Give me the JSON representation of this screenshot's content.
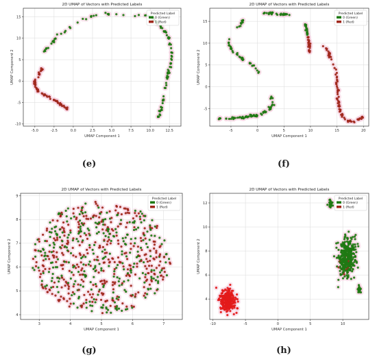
{
  "legend_title": "Predicted Label",
  "legend_green": "0 (Green)",
  "legend_red": "1 (Red)",
  "colors": {
    "green": "#1f7a14",
    "red": "#a0281c",
    "red_bright": "#e31a1a",
    "grid": "#d9d9d9",
    "halo": "#f6cfe0"
  },
  "chart_data": [
    {
      "id": "e",
      "type": "scatter",
      "caption": "(e)",
      "title": "2D UMAP of Vectors with Predicted Labels",
      "xlabel": "UMAP Component 1",
      "ylabel": "UMAP Component 2",
      "xlim": [
        -6.5,
        14
      ],
      "ylim": [
        -10.5,
        17
      ],
      "xticks": [
        "-5.0",
        "-2.5",
        "0.0",
        "2.5",
        "5.0",
        "7.5",
        "10.0",
        "12.5"
      ],
      "xtick_values": [
        -5,
        -2.5,
        0,
        2.5,
        5,
        7.5,
        10,
        12.5
      ],
      "yticks": [
        "-10",
        "-5",
        "0",
        "5",
        "10",
        "15"
      ],
      "ytick_values": [
        -10,
        -5,
        0,
        5,
        10,
        15
      ],
      "grid": true,
      "legend": "top-right",
      "segments": [
        {
          "label": 0,
          "n": 120,
          "pts": [
            [
              -3.8,
              6.8
            ],
            [
              -3.0,
              8.5
            ],
            [
              -2.0,
              10.5
            ],
            [
              -0.5,
              12.5
            ],
            [
              1.0,
              14.2
            ],
            [
              2.5,
              15.2
            ],
            [
              4.0,
              15.8
            ],
            [
              5.5,
              15.6
            ],
            [
              7.0,
              15.2
            ],
            [
              8.0,
              15.3
            ],
            [
              9.0,
              15.5
            ],
            [
              10.0,
              15.0
            ],
            [
              11.0,
              13.5
            ],
            [
              12.0,
              11.5
            ],
            [
              12.5,
              9.5
            ],
            [
              12.8,
              7.5
            ],
            [
              12.8,
              5.5
            ],
            [
              12.6,
              3.5
            ],
            [
              12.3,
              1.5
            ],
            [
              12.0,
              -1.0
            ],
            [
              11.8,
              -3.5
            ],
            [
              11.5,
              -6.0
            ],
            [
              11.0,
              -9.0
            ]
          ]
        },
        {
          "label": 1,
          "n": 45,
          "pts": [
            [
              -4.0,
              3.0
            ],
            [
              -4.5,
              1.5
            ],
            [
              -5.0,
              0.0
            ],
            [
              -5.0,
              -1.0
            ],
            [
              -4.6,
              -2.2
            ],
            [
              -3.8,
              -3.2
            ],
            [
              -3.0,
              -3.8
            ]
          ]
        },
        {
          "label": 1,
          "n": 25,
          "pts": [
            [
              -2.5,
              -4.2
            ],
            [
              -1.5,
              -5.5
            ],
            [
              -0.8,
              -6.5
            ]
          ]
        }
      ]
    },
    {
      "id": "f",
      "type": "scatter",
      "caption": "(f)",
      "title": "2D UMAP of Vectors with Predicted Labels",
      "xlabel": "UMAP Component 1",
      "ylabel": "UMAP Component 2",
      "xlim": [
        -9,
        21
      ],
      "ylim": [
        -9,
        18
      ],
      "xticks": [
        "-5",
        "0",
        "5",
        "10",
        "15",
        "20"
      ],
      "xtick_values": [
        -5,
        0,
        5,
        10,
        15,
        20
      ],
      "yticks": [
        "-5",
        "0",
        "5",
        "10",
        "15"
      ],
      "ytick_values": [
        -5,
        0,
        5,
        10,
        15
      ],
      "grid": true,
      "legend": "top-right",
      "segments": [
        {
          "label": 0,
          "n": 30,
          "pts": [
            [
              0.5,
              16.8
            ],
            [
              3.0,
              16.9
            ],
            [
              6.0,
              16.4
            ]
          ]
        },
        {
          "label": 0,
          "n": 45,
          "pts": [
            [
              -2.5,
              15.5
            ],
            [
              -4.0,
              13.0
            ],
            [
              -5.5,
              10.5
            ],
            [
              -5.0,
              8.5
            ],
            [
              -3.5,
              7.0
            ],
            [
              -1.0,
              5.0
            ],
            [
              0.3,
              3.2
            ]
          ]
        },
        {
          "label": 0,
          "n": 70,
          "pts": [
            [
              2.5,
              -2.5
            ],
            [
              3.0,
              -4.0
            ],
            [
              2.0,
              -5.5
            ],
            [
              0.0,
              -6.5
            ],
            [
              -3.0,
              -7.0
            ],
            [
              -6.0,
              -7.2
            ],
            [
              -7.5,
              -7.2
            ]
          ]
        },
        {
          "label": 0,
          "n": 20,
          "pts": [
            [
              9.0,
              14.5
            ],
            [
              9.3,
              13.0
            ],
            [
              9.5,
              11.5
            ]
          ]
        },
        {
          "label": 1,
          "n": 25,
          "pts": [
            [
              9.5,
              11.5
            ],
            [
              9.8,
              9.5
            ],
            [
              9.8,
              7.8
            ]
          ]
        },
        {
          "label": 1,
          "n": 80,
          "pts": [
            [
              12.5,
              9.5
            ],
            [
              13.5,
              7.5
            ],
            [
              14.5,
              5.0
            ],
            [
              15.0,
              2.5
            ],
            [
              15.0,
              0.0
            ],
            [
              15.2,
              -3.0
            ],
            [
              15.5,
              -5.5
            ],
            [
              16.5,
              -7.5
            ],
            [
              18.0,
              -8.0
            ],
            [
              20.0,
              -7.0
            ]
          ]
        }
      ]
    },
    {
      "id": "g",
      "type": "scatter",
      "caption": "(g)",
      "title": "2D UMAP of Vectors with Predicted Labels",
      "xlabel": "UMAP Component 1",
      "ylabel": "UMAP Component 2",
      "xlim": [
        2.4,
        7.6
      ],
      "ylim": [
        3.8,
        9.1
      ],
      "xticks": [
        "3",
        "4",
        "5",
        "6",
        "7"
      ],
      "xtick_values": [
        3,
        4,
        5,
        6,
        7
      ],
      "yticks": [
        "4",
        "5",
        "6",
        "7",
        "8",
        "9"
      ],
      "ytick_values": [
        4,
        5,
        6,
        7,
        8,
        9
      ],
      "grid": true,
      "legend": "top-right",
      "blobs": [
        {
          "label": 0,
          "n": 330,
          "cx": 5.0,
          "cy": 6.4,
          "rx": 2.25,
          "ry": 2.35,
          "shape": "disk"
        },
        {
          "label": 1,
          "n": 380,
          "cx": 5.0,
          "cy": 6.4,
          "rx": 2.25,
          "ry": 2.35,
          "shape": "disk"
        }
      ]
    },
    {
      "id": "h",
      "type": "scatter",
      "caption": "(h)",
      "title": "2D UMAP of Vectors with Predicted Labels",
      "xlabel": "UMAP Component 1",
      "ylabel": "UMAP Component 2",
      "xlim": [
        -10.5,
        14
      ],
      "ylim": [
        2.3,
        12.8
      ],
      "xticks": [
        "-10",
        "-5",
        "0",
        "5",
        "10"
      ],
      "xtick_values": [
        -10,
        -5,
        0,
        5,
        10
      ],
      "yticks": [
        "4",
        "6",
        "8",
        "10",
        "12"
      ],
      "ytick_values": [
        4,
        6,
        8,
        10,
        12
      ],
      "grid": true,
      "legend": "top-right",
      "blobs": [
        {
          "label": 1,
          "n": 260,
          "cx": -7.7,
          "cy": 3.9,
          "rx": 1.5,
          "ry": 1.15,
          "shape": "gauss",
          "bright": true
        },
        {
          "label": 0,
          "n": 380,
          "cx": 10.6,
          "cy": 7.5,
          "rx": 1.6,
          "ry": 1.9,
          "shape": "gauss"
        },
        {
          "label": 0,
          "n": 45,
          "cx": 8.1,
          "cy": 11.9,
          "rx": 0.35,
          "ry": 0.35,
          "shape": "gauss"
        },
        {
          "label": 0,
          "n": 25,
          "cx": 12.5,
          "cy": 4.8,
          "rx": 0.35,
          "ry": 0.3,
          "shape": "gauss"
        },
        {
          "label": 1,
          "n": 18,
          "cx": 10.5,
          "cy": 7.0,
          "rx": 1.5,
          "ry": 1.8,
          "shape": "gauss"
        }
      ]
    }
  ]
}
